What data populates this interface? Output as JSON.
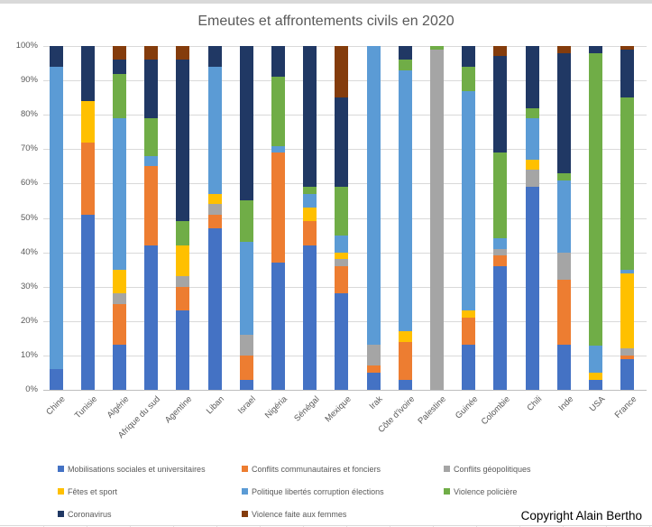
{
  "title": "Emeutes et affrontements civils en 2020",
  "copyright": "Copyright Alain Bertho",
  "chart_data": {
    "type": "bar",
    "variant": "stacked-100-percent",
    "title": "Emeutes et affrontements civils en 2020",
    "xlabel": "",
    "ylabel": "",
    "ylim": [
      0,
      100
    ],
    "grid": true,
    "legend_position": "bottom",
    "y_ticks": [
      "0%",
      "10%",
      "20%",
      "30%",
      "40%",
      "50%",
      "60%",
      "70%",
      "80%",
      "90%",
      "100%"
    ],
    "categories": [
      "Chine",
      "Tunisie",
      "Algérie",
      "Afrique du sud",
      "Agentine",
      "Liban",
      "Israel",
      "Nigéria",
      "Sénégal",
      "Mexique",
      "Irak",
      "Côte d'ivoire",
      "Palestine",
      "Guinée",
      "Colombie",
      "Chili",
      "Inde",
      "USA",
      "France"
    ],
    "series": [
      {
        "name": "Mobilisations sociales et universitaires",
        "color": "#4472C4",
        "values": [
          6,
          51,
          13,
          42,
          23,
          47,
          3,
          37,
          42,
          28,
          5,
          3,
          0,
          13,
          36,
          59,
          13,
          3,
          9
        ]
      },
      {
        "name": "Conflits communautaires et fonciers",
        "color": "#ED7D31",
        "values": [
          0,
          21,
          12,
          23,
          7,
          4,
          7,
          32,
          7,
          8,
          2,
          11,
          0,
          8,
          3,
          0,
          19,
          0,
          1
        ]
      },
      {
        "name": "Conflits géopolitiques",
        "color": "#A5A5A5",
        "values": [
          0,
          0,
          3,
          0,
          3,
          3,
          6,
          0,
          0,
          2,
          6,
          0,
          99,
          0,
          2,
          5,
          8,
          0,
          2
        ]
      },
      {
        "name": "Fêtes et sport",
        "color": "#FFC000",
        "values": [
          0,
          12,
          7,
          0,
          9,
          3,
          0,
          0,
          4,
          2,
          0,
          3,
          0,
          2,
          0,
          3,
          0,
          2,
          22
        ]
      },
      {
        "name": "Politique libertés corruption élections",
        "color": "#5B9BD5",
        "values": [
          88,
          0,
          44,
          3,
          0,
          37,
          27,
          2,
          4,
          5,
          87,
          76,
          0,
          64,
          3,
          12,
          21,
          8,
          1
        ]
      },
      {
        "name": "Violence policière",
        "color": "#70AD47",
        "values": [
          0,
          0,
          13,
          11,
          7,
          0,
          12,
          20,
          2,
          14,
          0,
          3,
          1,
          7,
          25,
          3,
          2,
          85,
          50
        ]
      },
      {
        "name": "Coronavirus",
        "color": "#203864",
        "values": [
          6,
          16,
          4,
          17,
          47,
          6,
          45,
          9,
          41,
          26,
          0,
          4,
          0,
          6,
          28,
          18,
          35,
          2,
          14
        ]
      },
      {
        "name": "Violence faite aux femmes",
        "color": "#843C0C",
        "values": [
          0,
          0,
          4,
          4,
          4,
          0,
          0,
          0,
          0,
          15,
          0,
          0,
          0,
          0,
          3,
          0,
          2,
          0,
          1
        ]
      }
    ]
  }
}
